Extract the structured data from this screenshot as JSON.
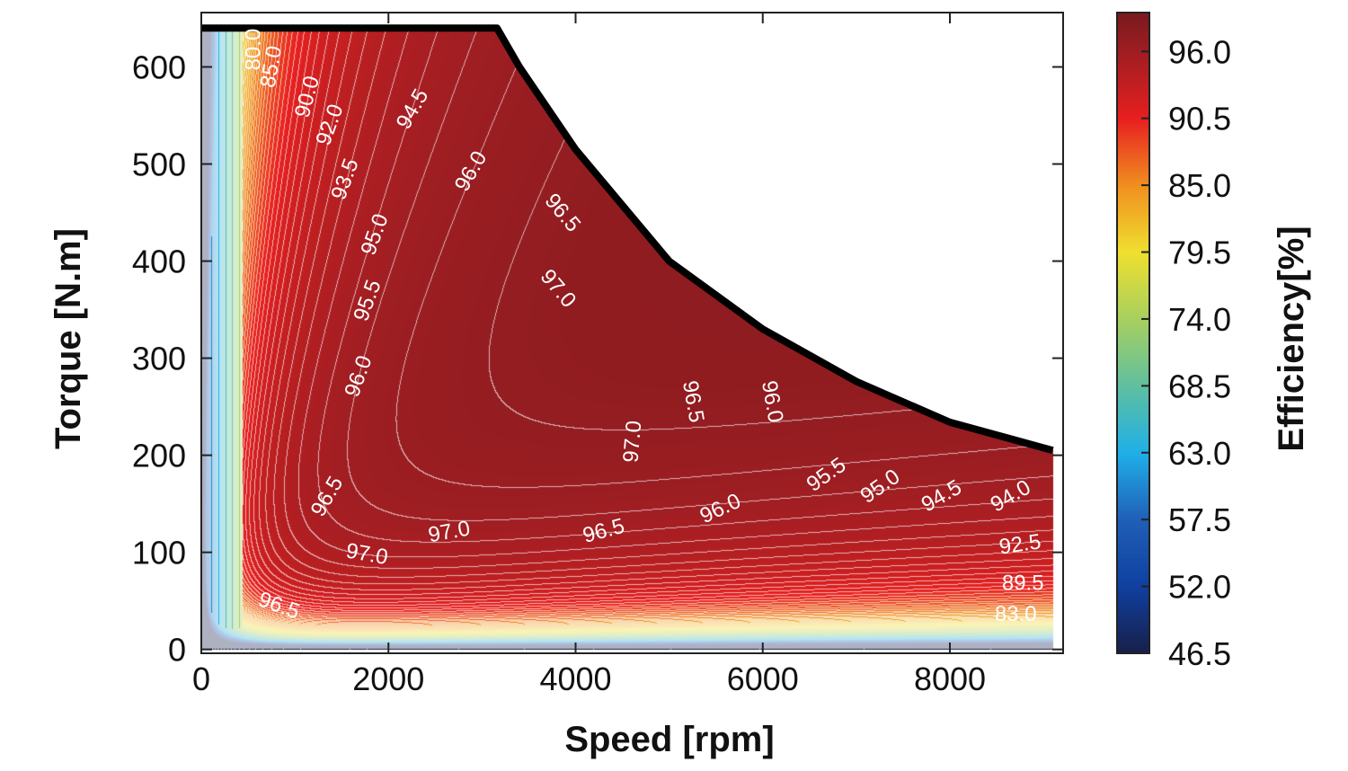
{
  "chart_data": {
    "type": "heatmap",
    "subtype": "filled-contour efficiency map",
    "title": "",
    "xlabel": "Speed [rpm]",
    "ylabel": "Torque [N.m]",
    "xlim": [
      0,
      9210
    ],
    "ylim": [
      -4,
      656
    ],
    "xticks": [
      0,
      2000,
      4000,
      6000,
      8000
    ],
    "xtick_labels": [
      "0",
      "2000",
      "4000",
      "6000",
      "8000"
    ],
    "yticks": [
      0,
      100,
      200,
      300,
      400,
      500,
      600
    ],
    "ytick_labels": [
      "0",
      "100",
      "200",
      "300",
      "400",
      "500",
      "600"
    ],
    "grid": false,
    "contour_step": 0.5,
    "torque_envelope": [
      [
        0,
        640
      ],
      [
        3160,
        640
      ],
      [
        3400,
        600
      ],
      [
        4000,
        515
      ],
      [
        5000,
        400
      ],
      [
        6000,
        330
      ],
      [
        7000,
        276
      ],
      [
        8000,
        234
      ],
      [
        9100,
        205
      ]
    ],
    "colorbar": {
      "label": "Efficiency[%]",
      "range": [
        46.5,
        99.2
      ],
      "ticks": [
        46.5,
        52.0,
        57.5,
        63.0,
        68.5,
        74.0,
        79.5,
        85.0,
        90.5,
        96.0
      ],
      "tick_labels": [
        "46.5",
        "52.0",
        "57.5",
        "63.0",
        "68.5",
        "74.0",
        "79.5",
        "85.0",
        "90.5",
        "96.0"
      ],
      "colors": [
        "#18204a",
        "#1040a0",
        "#2060b8",
        "#20b0e8",
        "#60c0a0",
        "#a8d060",
        "#f0e030",
        "#f09020",
        "#e82020",
        "#a01e22",
        "#7a1a1e"
      ]
    },
    "contour_labels": [
      {
        "text": "80.0",
        "speed": 567,
        "torque": 618
      },
      {
        "text": "85.0",
        "speed": 759,
        "torque": 600
      },
      {
        "text": "90.0",
        "speed": 1143,
        "torque": 569
      },
      {
        "text": "92.0",
        "speed": 1383,
        "torque": 540
      },
      {
        "text": "93.5",
        "speed": 1547,
        "torque": 484
      },
      {
        "text": "94.5",
        "speed": 2267,
        "torque": 556
      },
      {
        "text": "96.0",
        "speed": 2891,
        "torque": 492
      },
      {
        "text": "96.5",
        "speed": 3852,
        "torque": 449
      },
      {
        "text": "97.0",
        "speed": 3804,
        "torque": 371
      },
      {
        "text": "95.0",
        "speed": 1864,
        "torque": 427
      },
      {
        "text": "95.5",
        "speed": 1787,
        "torque": 359
      },
      {
        "text": "96.0",
        "speed": 1690,
        "torque": 281
      },
      {
        "text": "96.5",
        "speed": 1354,
        "torque": 157
      },
      {
        "text": "97.0",
        "speed": 1768,
        "torque": 97
      },
      {
        "text": "97.0",
        "speed": 2651,
        "torque": 120
      },
      {
        "text": "97.0",
        "speed": 4620,
        "torque": 214
      },
      {
        "text": "96.5",
        "speed": 5245,
        "torque": 255
      },
      {
        "text": "96.0",
        "speed": 6090,
        "torque": 255
      },
      {
        "text": "96.5",
        "speed": 4303,
        "torque": 121
      },
      {
        "text": "96.0",
        "speed": 5552,
        "torque": 144
      },
      {
        "text": "95.5",
        "speed": 6686,
        "torque": 179
      },
      {
        "text": "95.0",
        "speed": 7262,
        "torque": 167
      },
      {
        "text": "94.5",
        "speed": 7916,
        "torque": 157
      },
      {
        "text": "94.0",
        "speed": 8655,
        "torque": 157
      },
      {
        "text": "92.5",
        "speed": 8751,
        "torque": 107
      },
      {
        "text": "89.5",
        "speed": 8780,
        "torque": 67
      },
      {
        "text": "83.0",
        "speed": 8703,
        "torque": 35
      },
      {
        "text": "96.5",
        "speed": 826,
        "torque": 44
      }
    ]
  }
}
